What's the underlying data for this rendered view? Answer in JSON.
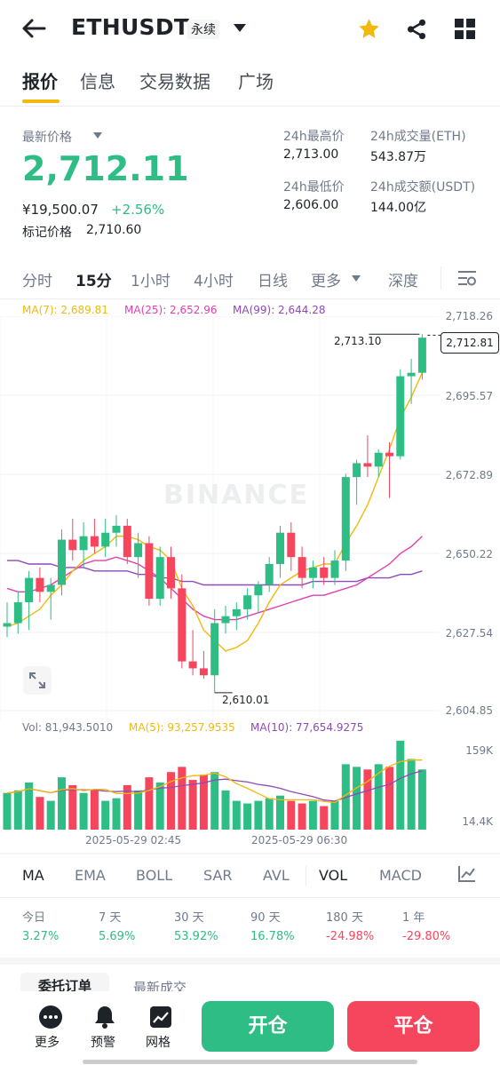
{
  "header": {
    "symbol": "ETHUSDT",
    "contract_type": "永续"
  },
  "tabs": [
    "报价",
    "信息",
    "交易数据",
    "广场"
  ],
  "price": {
    "label": "最新价格",
    "last": "2,712.11",
    "cny": "¥19,500.07",
    "change_pct": "+2.56%",
    "mark_label": "标记价格",
    "mark": "2,710.60"
  },
  "stats": {
    "high_label": "24h最高价",
    "high": "2,713.00",
    "low_label": "24h最低价",
    "low": "2,606.00",
    "vol_eth_label": "24h成交量(ETH)",
    "vol_eth": "543.87万",
    "vol_usdt_label": "24h成交额(USDT)",
    "vol_usdt": "144.00亿"
  },
  "intervals": [
    "分时",
    "15分",
    "1小时",
    "4小时",
    "日线",
    "更多",
    "深度"
  ],
  "active_interval": "15分",
  "ma_legend": {
    "ma7": "MA(7): 2,689.81",
    "ma25": "MA(25): 2,652.96",
    "ma99": "MA(99): 2,644.28"
  },
  "vol_legend": {
    "vol": "Vol: 81,943.5010",
    "ma5": "MA(5): 93,257.9535",
    "ma10": "MA(10): 77,654.9275"
  },
  "watermark": "BINANCE",
  "colors": {
    "up": "#2ebd85",
    "down": "#f6465d",
    "ma7": "#f0b90b",
    "ma25": "#e041b0",
    "ma99": "#8e4ab6",
    "accent": "#f0b90b"
  },
  "chart_data": {
    "type": "candlestick",
    "price_axis_ticks": [
      "2,718.26",
      "2,695.57",
      "2,672.89",
      "2,650.22",
      "2,627.54",
      "2,604.85"
    ],
    "ylim": [
      2604.85,
      2718.26
    ],
    "last_price_label": "2,712.81",
    "max_label": "2,713.10",
    "min_label": "2,610.01",
    "time_ticks": [
      "2025-05-29 02:45",
      "2025-05-29 06:30"
    ],
    "volume_axis_ticks": [
      "159K",
      "14.4K"
    ],
    "candles": [
      {
        "o": 2629,
        "h": 2636,
        "l": 2626,
        "c": 2630
      },
      {
        "o": 2630,
        "h": 2639,
        "l": 2627,
        "c": 2636
      },
      {
        "o": 2636,
        "h": 2645,
        "l": 2628,
        "c": 2643
      },
      {
        "o": 2643,
        "h": 2646,
        "l": 2636,
        "c": 2639
      },
      {
        "o": 2639,
        "h": 2643,
        "l": 2631,
        "c": 2641
      },
      {
        "o": 2641,
        "h": 2657,
        "l": 2638,
        "c": 2654
      },
      {
        "o": 2654,
        "h": 2660,
        "l": 2648,
        "c": 2651
      },
      {
        "o": 2651,
        "h": 2659,
        "l": 2646,
        "c": 2655
      },
      {
        "o": 2655,
        "h": 2660,
        "l": 2650,
        "c": 2652
      },
      {
        "o": 2652,
        "h": 2660,
        "l": 2649,
        "c": 2656
      },
      {
        "o": 2656,
        "h": 2661,
        "l": 2652,
        "c": 2658
      },
      {
        "o": 2658,
        "h": 2660,
        "l": 2647,
        "c": 2649
      },
      {
        "o": 2649,
        "h": 2656,
        "l": 2643,
        "c": 2653
      },
      {
        "o": 2653,
        "h": 2655,
        "l": 2635,
        "c": 2637
      },
      {
        "o": 2637,
        "h": 2652,
        "l": 2635,
        "c": 2649
      },
      {
        "o": 2649,
        "h": 2652,
        "l": 2637,
        "c": 2640
      },
      {
        "o": 2640,
        "h": 2644,
        "l": 2617,
        "c": 2619
      },
      {
        "o": 2619,
        "h": 2628,
        "l": 2615,
        "c": 2617
      },
      {
        "o": 2617,
        "h": 2622,
        "l": 2614,
        "c": 2615
      },
      {
        "o": 2615,
        "h": 2634,
        "l": 2610,
        "c": 2630
      },
      {
        "o": 2630,
        "h": 2635,
        "l": 2627,
        "c": 2632
      },
      {
        "o": 2632,
        "h": 2636,
        "l": 2628,
        "c": 2634
      },
      {
        "o": 2634,
        "h": 2640,
        "l": 2631,
        "c": 2638
      },
      {
        "o": 2638,
        "h": 2642,
        "l": 2633,
        "c": 2641
      },
      {
        "o": 2641,
        "h": 2649,
        "l": 2639,
        "c": 2647
      },
      {
        "o": 2647,
        "h": 2658,
        "l": 2643,
        "c": 2656
      },
      {
        "o": 2656,
        "h": 2659,
        "l": 2645,
        "c": 2649
      },
      {
        "o": 2649,
        "h": 2652,
        "l": 2640,
        "c": 2643
      },
      {
        "o": 2643,
        "h": 2648,
        "l": 2640,
        "c": 2646
      },
      {
        "o": 2646,
        "h": 2649,
        "l": 2641,
        "c": 2643
      },
      {
        "o": 2643,
        "h": 2651,
        "l": 2641,
        "c": 2648
      },
      {
        "o": 2648,
        "h": 2673,
        "l": 2645,
        "c": 2672
      },
      {
        "o": 2672,
        "h": 2677,
        "l": 2664,
        "c": 2676
      },
      {
        "o": 2676,
        "h": 2684,
        "l": 2672,
        "c": 2675
      },
      {
        "o": 2675,
        "h": 2680,
        "l": 2672,
        "c": 2679
      },
      {
        "o": 2679,
        "h": 2682,
        "l": 2666,
        "c": 2678
      },
      {
        "o": 2678,
        "h": 2703,
        "l": 2677,
        "c": 2701
      },
      {
        "o": 2701,
        "h": 2706,
        "l": 2693,
        "c": 2702
      },
      {
        "o": 2702,
        "h": 2713.1,
        "l": 2700,
        "c": 2712.1
      }
    ],
    "volumes": [
      28,
      30,
      36,
      25,
      22,
      40,
      34,
      28,
      30,
      22,
      24,
      34,
      30,
      40,
      36,
      44,
      48,
      38,
      42,
      44,
      30,
      22,
      20,
      22,
      24,
      26,
      22,
      20,
      22,
      18,
      22,
      50,
      48,
      46,
      50,
      48,
      68,
      54,
      46
    ],
    "ma7": [
      2629,
      2630,
      2632,
      2634,
      2638,
      2641,
      2645,
      2648,
      2650,
      2652,
      2655,
      2655,
      2654,
      2652,
      2651,
      2648,
      2640,
      2635,
      2628,
      2625,
      2622,
      2623,
      2625,
      2630,
      2636,
      2641,
      2643,
      2645,
      2646,
      2647,
      2647,
      2653,
      2658,
      2664,
      2672,
      2680,
      2689,
      2695,
      2702
    ],
    "ma25": [
      2640,
      2639,
      2639,
      2640,
      2641,
      2643,
      2645,
      2647,
      2648,
      2648,
      2649,
      2648,
      2647,
      2645,
      2643,
      2640,
      2637,
      2634,
      2632,
      2631,
      2631,
      2631,
      2632,
      2633,
      2634,
      2635,
      2636,
      2637,
      2638,
      2638,
      2639,
      2640,
      2641,
      2643,
      2645,
      2647,
      2650,
      2652,
      2655
    ],
    "ma99": [
      2648,
      2648,
      2647,
      2647,
      2647,
      2646,
      2646,
      2646,
      2645,
      2645,
      2645,
      2645,
      2644,
      2644,
      2643,
      2643,
      2642,
      2642,
      2641,
      2641,
      2641,
      2641,
      2641,
      2641,
      2641,
      2641,
      2641,
      2641,
      2642,
      2642,
      2642,
      2642,
      2642,
      2643,
      2643,
      2643,
      2644,
      2644,
      2645
    ]
  },
  "indicators": [
    "MA",
    "EMA",
    "BOLL",
    "SAR",
    "AVL",
    "VOL",
    "MACD"
  ],
  "performance": [
    {
      "label": "今日",
      "value": "3.27%",
      "dir": "up"
    },
    {
      "label": "7 天",
      "value": "5.69%",
      "dir": "up"
    },
    {
      "label": "30 天",
      "value": "53.92%",
      "dir": "up"
    },
    {
      "label": "90 天",
      "value": "16.78%",
      "dir": "up"
    },
    {
      "label": "180 天",
      "value": "-24.98%",
      "dir": "down"
    },
    {
      "label": "1 年",
      "value": "-29.80%",
      "dir": "down"
    }
  ],
  "lower_tabs": [
    "委托订单",
    "最新成交"
  ],
  "bottom": {
    "more": "更多",
    "alert": "预警",
    "grid": "网格",
    "open": "开仓",
    "close": "平仓"
  }
}
